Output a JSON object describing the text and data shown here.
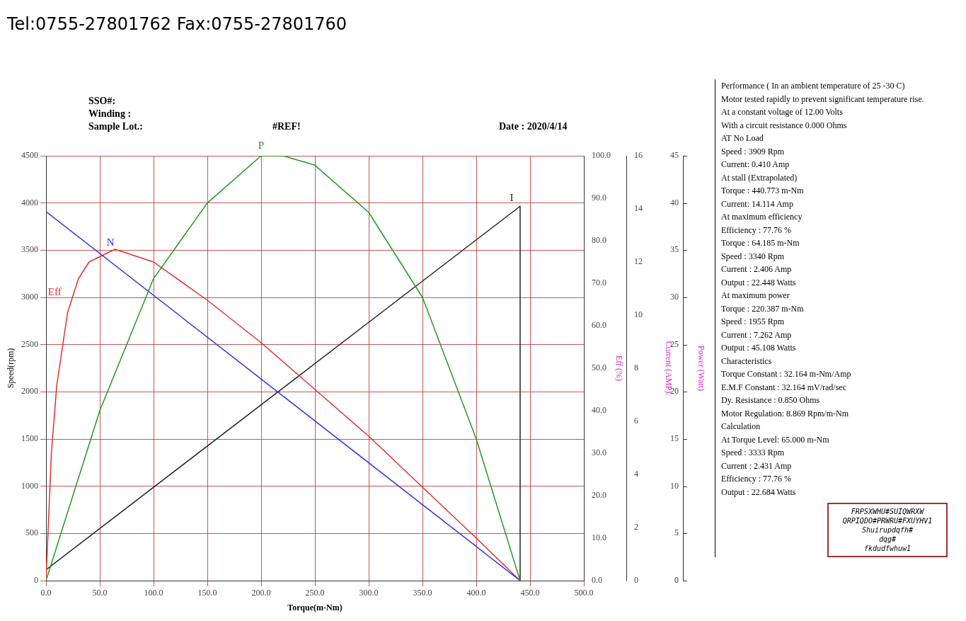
{
  "chart_data": [
    {
      "type": "line",
      "xlabel": "Torque(m-Nm)",
      "ylabel": "Speed(rpm)",
      "y2label": "Eff (%)",
      "y3label": "Current (AMP).",
      "annotations": [
        "Tel:0755-27801762 Fax:0755-27801760",
        "SSO#:",
        "Winding :",
        "Sample Lot.:",
        "#REF!",
        "Date : 2020/4/14"
      ],
      "xlim": [
        0,
        500
      ],
      "xticks": [
        {
          "value": 0,
          "label": "0.0"
        },
        {
          "value": 50,
          "label": "50.0"
        },
        {
          "value": 100,
          "label": "100.0"
        },
        {
          "value": 150,
          "label": "150.0"
        },
        {
          "value": 200,
          "label": "200.0"
        },
        {
          "value": 250,
          "label": "250.0"
        },
        {
          "value": 300,
          "label": "300.0"
        },
        {
          "value": 350,
          "label": "350.0"
        },
        {
          "value": 400,
          "label": "400.0"
        },
        {
          "value": 450,
          "label": "450.0"
        },
        {
          "value": 500,
          "label": "500.0"
        }
      ],
      "ylim": [
        0,
        4500
      ],
      "yticks": [
        0,
        500,
        1000,
        1500,
        2000,
        2500,
        3000,
        3500,
        4000,
        4500
      ],
      "y2lim": [
        0,
        100
      ],
      "y2ticks": [
        {
          "value": 0,
          "label": "0.0"
        },
        {
          "value": 10,
          "label": "10.0"
        },
        {
          "value": 20,
          "label": "20.0"
        },
        {
          "value": 30,
          "label": "30.0"
        },
        {
          "value": 40,
          "label": "40.0"
        },
        {
          "value": 50,
          "label": "50.0"
        },
        {
          "value": 60,
          "label": "60.0"
        },
        {
          "value": 70,
          "label": "70.0"
        },
        {
          "value": 80,
          "label": "80.0"
        },
        {
          "value": 90,
          "label": "90.0"
        },
        {
          "value": 100,
          "label": "100.0"
        }
      ],
      "y3lim": [
        0,
        16
      ],
      "y3ticks": [
        0,
        2,
        4,
        6,
        8,
        10,
        12,
        14,
        16
      ],
      "grid": true,
      "legend": false,
      "marker": "none",
      "line_style": "solid",
      "series": [
        {
          "name": "N",
          "color": "#3333dd",
          "x": [
            0,
            440.773
          ],
          "values": [
            3909,
            0
          ]
        },
        {
          "name": "Eff",
          "color": "#e03030",
          "axis": "y2",
          "x": [
            0,
            5,
            10,
            20,
            30,
            40,
            64.185,
            100,
            150,
            200,
            250,
            300,
            350,
            400,
            440.773
          ],
          "values": [
            0,
            30,
            46,
            63,
            71,
            75,
            78,
            75,
            66,
            56,
            45,
            34,
            22,
            10,
            0
          ]
        },
        {
          "name": "I",
          "color": "#222222",
          "axis": "y3",
          "x": [
            0,
            440.773,
            440.773
          ],
          "values": [
            0.41,
            14.1,
            0
          ]
        }
      ]
    },
    {
      "type": "line",
      "ylabel": "Power (Watt)",
      "tick_labels": "y",
      "xlim": [
        0,
        500
      ],
      "ylim": [
        0,
        45
      ],
      "yticks": [
        0,
        5,
        10,
        15,
        20,
        25,
        30,
        35,
        40,
        45
      ],
      "legend": false,
      "marker": "none",
      "line_style": "solid",
      "series": [
        {
          "name": "P",
          "color": "#229922",
          "x": [
            0,
            50,
            100,
            150,
            200,
            220.387,
            250,
            300,
            350,
            400,
            440.773
          ],
          "values": [
            0,
            18,
            32,
            40,
            45,
            45,
            44,
            39,
            30,
            15,
            0
          ]
        }
      ]
    },
    {
      "type": "other",
      "annotations": [
        "Performance ( In an ambient temperature of 25 -30 C)",
        "Motor tested rapidly to prevent significant temperature rise.",
        "At a constant voltage of 12.00 Volts",
        "With a circuit resistance 0.000 Ohms",
        "AT No Load",
        "Speed : 3909 Rpm",
        "Current: 0.410 Amp",
        "At stall (Extrapolated)",
        "Torque : 440.773 m-Nm",
        "Current: 14.114 Amp",
        "At maximum efficiency",
        "Efficiency : 77.76 %",
        "Torque : 64.185 m-Nm",
        "Speed : 3340 Rpm",
        "Current : 2.406 Amp",
        "Output : 22.448 Watts",
        "At maximum power",
        "Torque : 220.387 m-Nm",
        "Speed : 1955 Rpm",
        "Current : 7.262 Amp",
        "Output : 45.108 Watts",
        "Characteristics",
        "Torque Constant : 32.164 m-Nm/Amp",
        "E.M.F Constant : 32.164 mV/rad/sec",
        "Dy. Resistance : 0.850 Ohms",
        "Motor Regulation: 8.869 Rpm/m-Nm",
        "Calculation",
        "At Torque Level: 65.000 m-Nm",
        "Speed : 3333 Rpm",
        "Current : 2.431 Amp",
        "Efficiency : 77.76 %",
        "Output : 22.684 Watts",
        "FRPSXWHU#SUIQWRXW",
        "QRPIQDO#PRWRU#FXUYHV1",
        "Shuirupdqfh#",
        "dqg#",
        "fkdudfwhuw1"
      ]
    }
  ]
}
